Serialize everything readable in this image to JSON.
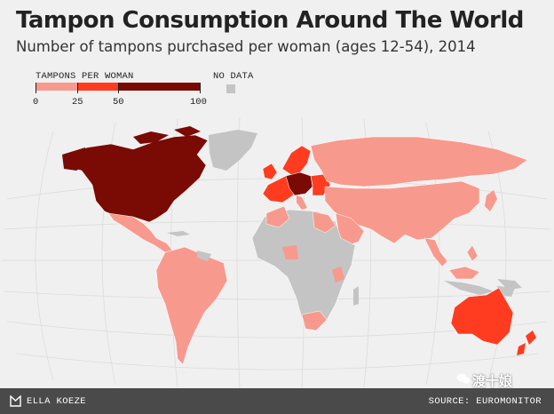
{
  "title": "Tampon Consumption Around The World",
  "subtitle": "Number of tampons purchased per woman (ages 12-54), 2014",
  "legend": {
    "title": "TAMPONS PER WOMAN",
    "no_data_label": "NO DATA",
    "ticks": [
      "0",
      "25",
      "50",
      "100"
    ],
    "bins": [
      {
        "range": [
          0,
          25
        ],
        "color": "#f8998d"
      },
      {
        "range": [
          25,
          50
        ],
        "color": "#ff3c1f"
      },
      {
        "range": [
          50,
          100
        ],
        "color": "#7a0a04"
      }
    ],
    "no_data_color": "#c4c4c4"
  },
  "regions": [
    {
      "name": "North America",
      "bin": "50-100"
    },
    {
      "name": "Mexico & Central America",
      "bin": "0-25"
    },
    {
      "name": "South America",
      "bin": "0-25"
    },
    {
      "name": "Western Europe",
      "bin": "25-50"
    },
    {
      "name": "Central Europe",
      "bin": "50-100"
    },
    {
      "name": "Russia & Asia",
      "bin": "0-25"
    },
    {
      "name": "Africa",
      "bin": "no data"
    },
    {
      "name": "South Africa",
      "bin": "0-25"
    },
    {
      "name": "Australia",
      "bin": "25-50"
    },
    {
      "name": "New Zealand",
      "bin": "25-50"
    },
    {
      "name": "Greenland",
      "bin": "no data"
    }
  ],
  "footer": {
    "author": "ELLA KOEZE",
    "source": "SOURCE: EUROMONITOR"
  },
  "watermark": "渡十娘"
}
